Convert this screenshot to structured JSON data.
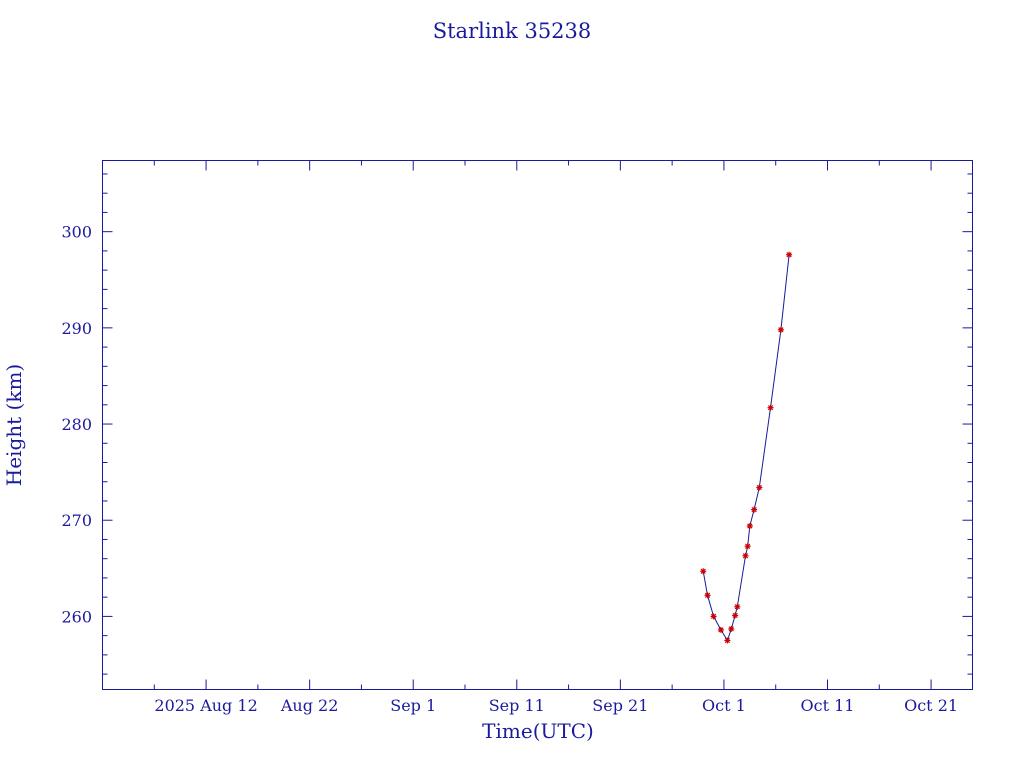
{
  "chart_data": {
    "type": "line",
    "title": "Starlink 35238",
    "xlabel": "Time(UTC)",
    "ylabel": "Height (km)",
    "x_tick_labels": [
      "2025 Aug 12",
      "Aug 22",
      "Sep  1",
      "Sep 11",
      "Sep 21",
      "Oct  1",
      "Oct 11",
      "Oct 21"
    ],
    "x_ticks": [
      "2025-08-12",
      "2025-08-22",
      "2025-09-01",
      "2025-09-11",
      "2025-09-21",
      "2025-10-01",
      "2025-10-11",
      "2025-10-21"
    ],
    "y_tick_labels": [
      "260",
      "270",
      "280",
      "290",
      "300"
    ],
    "y_ticks": [
      260,
      270,
      280,
      290,
      300
    ],
    "xlim": [
      "2025-08-02T00:00",
      "2025-10-25T00:00"
    ],
    "ylim": [
      252.4,
      307.4
    ],
    "grid": false,
    "colors": {
      "axes": "#1a1a9c",
      "line": "#1a1a9c",
      "markers": "#cc0000"
    },
    "series": [
      {
        "points": [
          {
            "x": "2025-09-29T00:00",
            "y": 264.7
          },
          {
            "x": "2025-09-29T10:00",
            "y": 262.2
          },
          {
            "x": "2025-09-30T00:00",
            "y": 260.0
          },
          {
            "x": "2025-09-30T17:00",
            "y": 258.6
          },
          {
            "x": "2025-10-01T08:00",
            "y": 257.5
          },
          {
            "x": "2025-10-01T17:00",
            "y": 258.7
          },
          {
            "x": "2025-10-02T02:00",
            "y": 260.1
          },
          {
            "x": "2025-10-02T07:00",
            "y": 261.0
          },
          {
            "x": "2025-10-03T02:00",
            "y": 266.3
          },
          {
            "x": "2025-10-03T07:00",
            "y": 267.3
          },
          {
            "x": "2025-10-03T12:00",
            "y": 269.4
          },
          {
            "x": "2025-10-03T22:00",
            "y": 271.1
          },
          {
            "x": "2025-10-04T10:00",
            "y": 273.4
          },
          {
            "x": "2025-10-05T12:00",
            "y": 281.7
          },
          {
            "x": "2025-10-06T12:00",
            "y": 289.8
          },
          {
            "x": "2025-10-07T07:00",
            "y": 297.6
          }
        ]
      }
    ]
  }
}
